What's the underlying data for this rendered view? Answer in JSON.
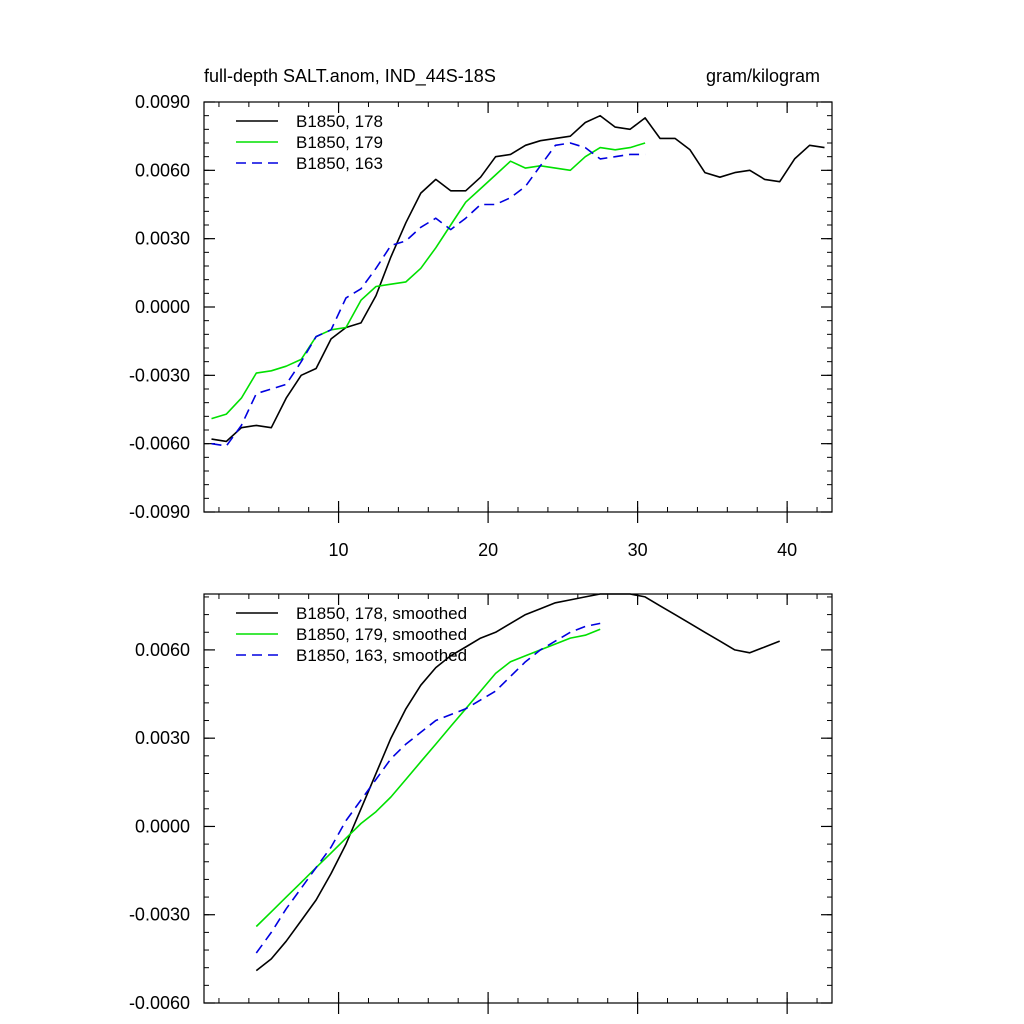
{
  "chart_data": [
    {
      "type": "line",
      "title": "full-depth SALT.anom, IND_44S-18S",
      "units": "gram/kilogram",
      "xlim": [
        1,
        43
      ],
      "ylim": [
        -0.009,
        0.009
      ],
      "x_ticks": [
        10,
        20,
        30,
        40
      ],
      "x_tick_labels": [
        "10",
        "20",
        "30",
        "40"
      ],
      "y_ticks": [
        -0.009,
        -0.006,
        -0.003,
        0.0,
        0.003,
        0.006,
        0.009
      ],
      "y_tick_labels": [
        "-0.0090",
        "-0.0060",
        "-0.0030",
        "0.0000",
        "0.0030",
        "0.0060",
        "0.0090"
      ],
      "legend_position": "top-left",
      "series": [
        {
          "name": "B1850, 178",
          "color": "#000000",
          "dash": "solid",
          "x": [
            1.5,
            2.5,
            3.5,
            4.5,
            5.5,
            6.5,
            7.5,
            8.5,
            9.5,
            10.5,
            11.5,
            12.5,
            13.5,
            14.5,
            15.5,
            16.5,
            17.5,
            18.5,
            19.5,
            20.5,
            21.5,
            22.5,
            23.5,
            24.5,
            25.5,
            26.5,
            27.5,
            28.5,
            29.5,
            30.5,
            31.5,
            32.5,
            33.5,
            34.5,
            35.5,
            36.5,
            37.5,
            38.5,
            39.5,
            40.5,
            41.5,
            42.5
          ],
          "values": [
            -0.0058,
            -0.0059,
            -0.0053,
            -0.0052,
            -0.0053,
            -0.004,
            -0.003,
            -0.0027,
            -0.0014,
            -0.0009,
            -0.0007,
            0.0005,
            0.0022,
            0.0037,
            0.005,
            0.0056,
            0.0051,
            0.0051,
            0.0057,
            0.0066,
            0.0067,
            0.0071,
            0.0073,
            0.0074,
            0.0075,
            0.0081,
            0.0084,
            0.0079,
            0.0078,
            0.0083,
            0.0074,
            0.0074,
            0.0069,
            0.0059,
            0.0057,
            0.0059,
            0.006,
            0.0056,
            0.0055,
            0.0065,
            0.0071,
            0.007
          ]
        },
        {
          "name": "B1850, 179",
          "color": "#00e000",
          "dash": "solid",
          "x": [
            1.5,
            2.5,
            3.5,
            4.5,
            5.5,
            6.5,
            7.5,
            8.5,
            9.5,
            10.5,
            11.5,
            12.5,
            13.5,
            14.5,
            15.5,
            16.5,
            17.5,
            18.5,
            19.5,
            20.5,
            21.5,
            22.5,
            23.5,
            24.5,
            25.5,
            26.5,
            27.5,
            28.5,
            29.5,
            30.5
          ],
          "values": [
            -0.0049,
            -0.0047,
            -0.004,
            -0.0029,
            -0.0028,
            -0.0026,
            -0.0023,
            -0.0013,
            -0.001,
            -0.0009,
            0.0003,
            0.0009,
            0.001,
            0.0011,
            0.0017,
            0.0026,
            0.0036,
            0.0046,
            0.0052,
            0.0058,
            0.0064,
            0.0061,
            0.0062,
            0.0061,
            0.006,
            0.0066,
            0.007,
            0.0069,
            0.007,
            0.0072
          ]
        },
        {
          "name": "B1850, 163",
          "color": "#0000e0",
          "dash": "dashed",
          "x": [
            1.5,
            2.5,
            3.5,
            4.5,
            5.5,
            6.5,
            7.5,
            8.5,
            9.5,
            10.5,
            11.5,
            12.5,
            13.5,
            14.5,
            15.5,
            16.5,
            17.5,
            18.5,
            19.5,
            20.5,
            21.5,
            22.5,
            23.5,
            24.5,
            25.5,
            26.5,
            27.5,
            28.5,
            29.5,
            30.5
          ],
          "values": [
            -0.006,
            -0.0061,
            -0.0052,
            -0.0038,
            -0.0036,
            -0.0034,
            -0.0024,
            -0.0013,
            -0.001,
            0.0004,
            0.0008,
            0.0017,
            0.0027,
            0.0029,
            0.0035,
            0.0039,
            0.0034,
            0.0039,
            0.0045,
            0.0045,
            0.0048,
            0.0053,
            0.0062,
            0.0071,
            0.0072,
            0.007,
            0.0065,
            0.0066,
            0.0067,
            0.0067
          ]
        }
      ]
    },
    {
      "type": "line",
      "xlim": [
        1,
        43
      ],
      "ylim": [
        -0.006,
        0.0079
      ],
      "x_ticks": [
        10,
        20,
        30,
        40
      ],
      "x_tick_labels": [
        "",
        "",
        "",
        ""
      ],
      "y_ticks": [
        -0.006,
        -0.003,
        0.0,
        0.003,
        0.006
      ],
      "y_tick_labels": [
        "-0.0060",
        "-0.0030",
        "0.0000",
        "0.0030",
        "0.0060"
      ],
      "legend_position": "top-left",
      "series": [
        {
          "name": "B1850, 178, smoothed",
          "color": "#000000",
          "dash": "solid",
          "x": [
            4.5,
            5.5,
            6.5,
            7.5,
            8.5,
            9.5,
            10.5,
            11.5,
            12.5,
            13.5,
            14.5,
            15.5,
            16.5,
            17.5,
            18.5,
            19.5,
            20.5,
            21.5,
            22.5,
            23.5,
            24.5,
            25.5,
            26.5,
            27.5,
            28.5,
            29.5,
            30.5,
            31.5,
            32.5,
            33.5,
            34.5,
            35.5,
            36.5,
            37.5,
            38.5,
            39.5
          ],
          "values": [
            -0.0049,
            -0.0045,
            -0.0039,
            -0.0032,
            -0.0025,
            -0.0016,
            -0.0006,
            0.0006,
            0.0018,
            0.003,
            0.004,
            0.0048,
            0.0054,
            0.0058,
            0.0061,
            0.0064,
            0.0066,
            0.0069,
            0.0072,
            0.0074,
            0.0076,
            0.0077,
            0.0078,
            0.0079,
            0.0079,
            0.0079,
            0.0078,
            0.0075,
            0.0072,
            0.0069,
            0.0066,
            0.0063,
            0.006,
            0.0059,
            0.0061,
            0.0063
          ]
        },
        {
          "name": "B1850, 179, smoothed",
          "color": "#00e000",
          "dash": "solid",
          "x": [
            4.5,
            5.5,
            6.5,
            7.5,
            8.5,
            9.5,
            10.5,
            11.5,
            12.5,
            13.5,
            14.5,
            15.5,
            16.5,
            17.5,
            18.5,
            19.5,
            20.5,
            21.5,
            22.5,
            23.5,
            24.5,
            25.5,
            26.5,
            27.5
          ],
          "values": [
            -0.0034,
            -0.0029,
            -0.0024,
            -0.0019,
            -0.0014,
            -0.0009,
            -0.0004,
            0.0001,
            0.0005,
            0.001,
            0.0016,
            0.0022,
            0.0028,
            0.0034,
            0.004,
            0.0046,
            0.0052,
            0.0056,
            0.0058,
            0.006,
            0.0062,
            0.0064,
            0.0065,
            0.0067
          ]
        },
        {
          "name": "B1850, 163, smoothed",
          "color": "#0000e0",
          "dash": "dashed",
          "x": [
            4.5,
            5.5,
            6.5,
            7.5,
            8.5,
            9.5,
            10.5,
            11.5,
            12.5,
            13.5,
            14.5,
            15.5,
            16.5,
            17.5,
            18.5,
            19.5,
            20.5,
            21.5,
            22.5,
            23.5,
            24.5,
            25.5,
            26.5,
            27.5
          ],
          "values": [
            -0.0043,
            -0.0036,
            -0.0028,
            -0.0021,
            -0.0014,
            -0.0007,
            0.0002,
            0.0009,
            0.0016,
            0.0023,
            0.0028,
            0.0032,
            0.0036,
            0.0038,
            0.004,
            0.0043,
            0.0046,
            0.0051,
            0.0056,
            0.006,
            0.0063,
            0.0066,
            0.0068,
            0.0069
          ]
        }
      ]
    }
  ]
}
